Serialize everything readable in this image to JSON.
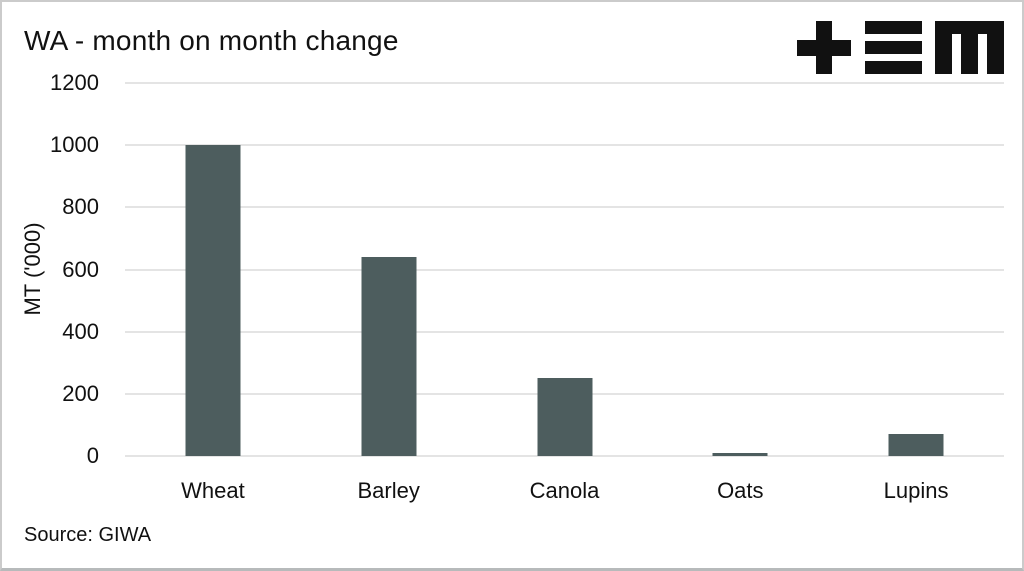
{
  "header": {
    "title": "WA - month on month change"
  },
  "footer": {
    "source": "Source: GIWA"
  },
  "logo": {
    "name": "tem-logo"
  },
  "colors": {
    "bar": "#4d5d5e",
    "gridline": "#e4e4e4",
    "text": "#111111",
    "border": "#cbcbcb",
    "logo": "#111111"
  },
  "chart_data": {
    "type": "bar",
    "categories": [
      "Wheat",
      "Barley",
      "Canola",
      "Oats",
      "Lupins"
    ],
    "values": [
      1000,
      640,
      250,
      10,
      70
    ],
    "title": "WA - month on month change",
    "xlabel": "",
    "ylabel": "MT ('000)",
    "ylim": [
      0,
      1200
    ],
    "yticks": [
      0,
      200,
      400,
      600,
      800,
      1000,
      1200
    ],
    "grid": true,
    "legend": false,
    "source": "GIWA"
  }
}
